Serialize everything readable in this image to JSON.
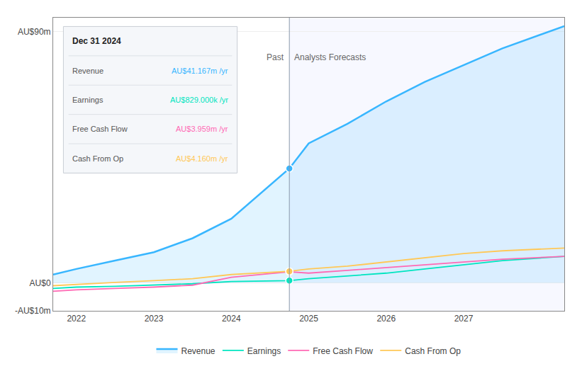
{
  "chart_data": {
    "type": "line",
    "x": [
      2021.7,
      2022,
      2022.5,
      2023,
      2023.5,
      2024,
      2024.75,
      2025,
      2025.5,
      2026,
      2026.5,
      2027,
      2027.5,
      2028.3
    ],
    "xlim": [
      2021.7,
      2028.3
    ],
    "xticks": [
      2022,
      2023,
      2024,
      2025,
      2026,
      2027
    ],
    "ylim": [
      -10,
      95
    ],
    "yticks": [
      {
        "value": -10,
        "label": "-AU$10m"
      },
      {
        "value": 0,
        "label": "AU$0"
      },
      {
        "value": 90,
        "label": "AU$90m"
      }
    ],
    "grid": true,
    "legend": "bottom",
    "vline": 2024.75,
    "annotations": [
      {
        "text": "Past",
        "x": 2024.75,
        "y": 83
      },
      {
        "text": "Analysts Forecasts",
        "x": 2024.75,
        "y": 83
      }
    ],
    "series": [
      {
        "name": "Revenue",
        "type": "area",
        "color": "#38b6ff",
        "values": [
          3,
          5,
          8,
          11,
          16,
          23,
          41,
          50,
          57,
          65,
          72,
          78,
          84,
          92
        ]
      },
      {
        "name": "Earnings",
        "type": "line",
        "color": "#00e5c0",
        "values": [
          -2,
          -1.5,
          -1.2,
          -0.8,
          -0.3,
          0.5,
          0.83,
          1.5,
          2.5,
          3.5,
          5.0,
          6.5,
          8.0,
          9.5
        ]
      },
      {
        "name": "Free Cash Flow",
        "type": "line",
        "color": "#ff69b4",
        "values": [
          -3,
          -2.5,
          -2.0,
          -1.5,
          -0.8,
          2.0,
          3.96,
          3.5,
          4.5,
          5.5,
          6.5,
          7.5,
          8.5,
          9.5
        ]
      },
      {
        "name": "Cash From Op",
        "type": "line",
        "color": "#ffc857",
        "values": [
          -1,
          -0.5,
          0.2,
          0.8,
          1.5,
          3.0,
          4.16,
          5.0,
          6.0,
          7.5,
          9.0,
          10.5,
          11.5,
          12.5
        ]
      }
    ],
    "tooltip": {
      "title": "Dec 31 2024",
      "rows": [
        {
          "label": "Revenue",
          "value": "AU$41.167m /yr",
          "color": "#38b6ff"
        },
        {
          "label": "Earnings",
          "value": "AU$829.000k /yr",
          "color": "#00e5c0"
        },
        {
          "label": "Free Cash Flow",
          "value": "AU$3.959m /yr",
          "color": "#ff69b4"
        },
        {
          "label": "Cash From Op",
          "value": "AU$4.160m /yr",
          "color": "#ffc857"
        }
      ]
    }
  }
}
